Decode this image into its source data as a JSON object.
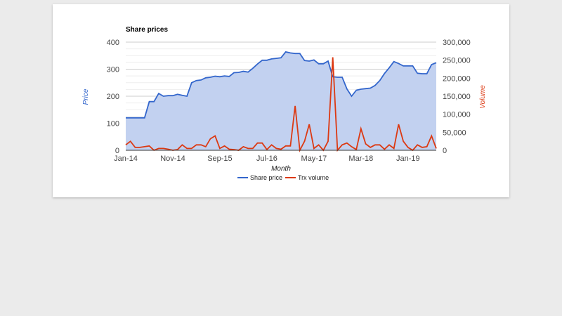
{
  "chart_data": {
    "type": "line",
    "title": "Share prices",
    "xlabel": "Month",
    "ylabel_left": "Price",
    "ylabel_right": "Volume",
    "x_tick_labels": [
      "Jan-14",
      "Nov-14",
      "Sep-15",
      "Jul-16",
      "May-17",
      "Mar-18",
      "Jan-19"
    ],
    "x_tick_month_index": [
      0,
      10,
      20,
      30,
      40,
      50,
      60
    ],
    "ylim_left": [
      0,
      400
    ],
    "left_ticks": [
      0,
      100,
      200,
      300,
      400
    ],
    "left_tick_labels": [
      "0",
      "100",
      "200",
      "300",
      "400"
    ],
    "ylim_right": [
      0,
      300000
    ],
    "right_ticks": [
      0,
      50000,
      100000,
      150000,
      200000,
      250000,
      300000
    ],
    "right_tick_labels": [
      "0",
      "50,000",
      "100,000",
      "150,000",
      "200,000",
      "250,000",
      "300,000"
    ],
    "grid": true,
    "legend_position": "bottom",
    "series": [
      {
        "name": "Share price",
        "axis": "left",
        "style": "area",
        "color": "#3366cc",
        "fill": "#c2d1f0",
        "values": [
          120,
          120,
          120,
          120,
          120,
          180,
          180,
          210,
          200,
          202,
          202,
          207,
          203,
          200,
          250,
          258,
          260,
          268,
          270,
          274,
          272,
          275,
          273,
          287,
          288,
          292,
          289,
          303,
          319,
          333,
          333,
          338,
          340,
          342,
          364,
          360,
          358,
          358,
          332,
          330,
          334,
          320,
          320,
          330,
          272,
          270,
          270,
          227,
          200,
          222,
          226,
          228,
          230,
          240,
          258,
          284,
          305,
          328,
          321,
          312,
          312,
          312,
          285,
          283,
          283,
          317,
          324
        ]
      },
      {
        "name": "Trx volume",
        "axis": "right",
        "style": "line",
        "color": "#dc3912",
        "values": [
          15000,
          25000,
          8000,
          8000,
          10000,
          12000,
          0,
          5000,
          5000,
          3000,
          0,
          2000,
          15000,
          5000,
          5000,
          15000,
          15000,
          10000,
          32000,
          40000,
          5000,
          12000,
          3000,
          2000,
          0,
          10000,
          5000,
          5000,
          20000,
          20000,
          2000,
          15000,
          5000,
          3000,
          12000,
          12000,
          123000,
          0,
          25000,
          72000,
          5000,
          15000,
          0,
          25000,
          258000,
          0,
          15000,
          20000,
          10000,
          2000,
          60000,
          18000,
          8000,
          15000,
          15000,
          3000,
          15000,
          5000,
          72000,
          25000,
          8000,
          0,
          15000,
          8000,
          10000,
          40000,
          5000
        ]
      }
    ]
  }
}
